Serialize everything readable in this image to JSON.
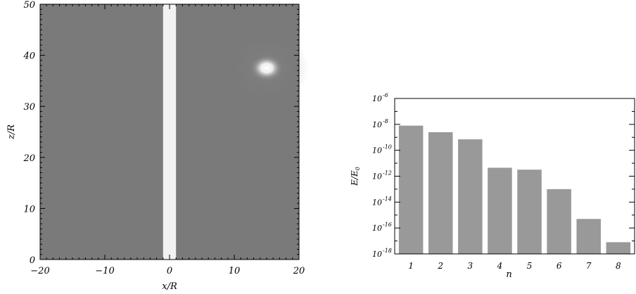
{
  "chart_data": [
    {
      "type": "heatmap",
      "title": "",
      "xlabel": "x/R",
      "ylabel": "z/R",
      "xlim": [
        -20,
        20
      ],
      "ylim": [
        0,
        50
      ],
      "xticks": [
        -20,
        -10,
        0,
        10,
        20
      ],
      "xtick_labels": [
        "−20",
        "−10",
        "0",
        "10",
        "20"
      ],
      "yticks": [
        0,
        10,
        20,
        30,
        40,
        50
      ],
      "ytick_labels": [
        "0",
        "10",
        "20",
        "30",
        "40",
        "50"
      ],
      "grid": false,
      "colorscale": "grayscale",
      "background_color": "#7a7a7a",
      "features": [
        {
          "kind": "vertical-band",
          "x_range": [
            -1,
            1
          ],
          "z_range": [
            0,
            50
          ],
          "color": "#f2f2f2"
        },
        {
          "kind": "bright-spot",
          "x": 15,
          "z": 37.5,
          "color": "#ffffff"
        }
      ]
    },
    {
      "type": "bar",
      "title": "",
      "xlabel": "n",
      "ylabel": "E/E₀",
      "ylabel_main": "E/E",
      "ylabel_sub": "0",
      "yscale": "log",
      "categories": [
        "1",
        "2",
        "3",
        "4",
        "5",
        "6",
        "7",
        "8"
      ],
      "values": [
        8e-09,
        2.5e-09,
        7e-10,
        4.5e-12,
        3.2e-12,
        1e-13,
        5e-16,
        8e-18
      ],
      "ylim": [
        1e-18,
        1e-06
      ],
      "yticks_exponent": [
        -18,
        -16,
        -14,
        -12,
        -10,
        -8,
        -6
      ],
      "ytick_base": "10",
      "ytick_exponents": [
        "-18",
        "-16",
        "-14",
        "-12",
        "-10",
        "-8",
        "-6"
      ],
      "bar_color": "#999999",
      "grid": false
    }
  ]
}
